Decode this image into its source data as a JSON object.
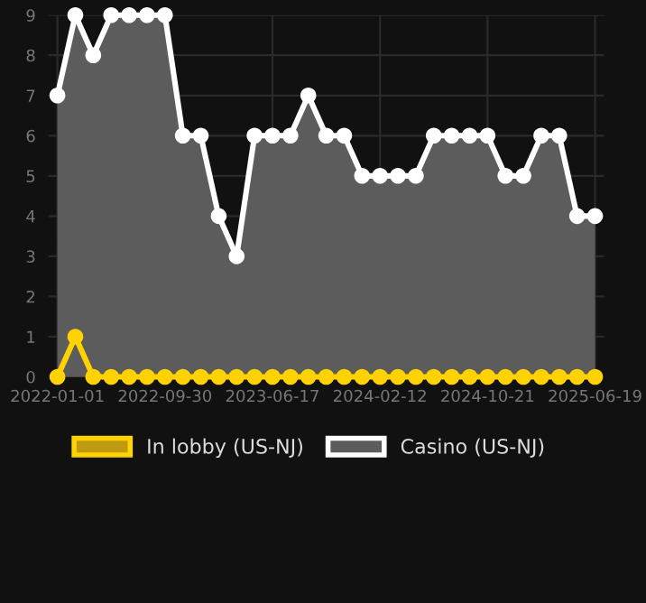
{
  "chart_data": {
    "type": "area",
    "categories": [
      "2022-01-01",
      null,
      null,
      null,
      null,
      null,
      "2022-09-30",
      null,
      null,
      null,
      null,
      null,
      "2023-06-17",
      null,
      null,
      null,
      null,
      null,
      "2024-02-12",
      null,
      null,
      null,
      null,
      null,
      "2024-10-21",
      null,
      null,
      null,
      null,
      null,
      "2025-06-19"
    ],
    "series": [
      {
        "name": "In lobby (US-NJ)",
        "color": "#ffd200",
        "values": [
          0,
          1,
          0,
          0,
          0,
          0,
          0,
          0,
          0,
          0,
          0,
          0,
          0,
          0,
          0,
          0,
          0,
          0,
          0,
          0,
          0,
          0,
          0,
          0,
          0,
          0,
          0,
          0,
          0,
          0,
          0
        ]
      },
      {
        "name": "Casino (US-NJ)",
        "color": "#ffffff",
        "values": [
          7,
          9,
          8,
          9,
          9,
          9,
          9,
          6,
          6,
          4,
          3,
          6,
          6,
          6,
          7,
          6,
          6,
          5,
          5,
          5,
          5,
          6,
          6,
          6,
          6,
          5,
          5,
          6,
          6,
          4,
          4
        ]
      }
    ],
    "ylim": [
      0,
      9
    ],
    "yticks": [
      0,
      1,
      2,
      3,
      4,
      5,
      6,
      7,
      8,
      9
    ],
    "grid": true,
    "legend": "bottom",
    "marker": "circle",
    "line_style": "solid"
  }
}
